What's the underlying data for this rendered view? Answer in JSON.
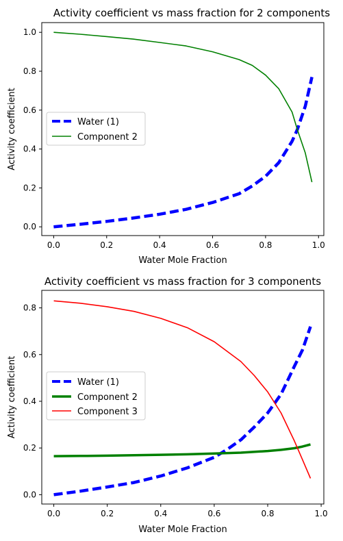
{
  "chart_data": [
    {
      "type": "line",
      "title": "Activity coefficient vs mass fraction for 2 components",
      "xlabel": "Water Mole Fraction",
      "ylabel": "Activity coefficient",
      "xlim": [
        -0.045,
        1.02
      ],
      "ylim": [
        -0.045,
        1.05
      ],
      "xticks": [
        "0.0",
        "0.2",
        "0.4",
        "0.6",
        "0.8",
        "1.0"
      ],
      "yticks": [
        "0.0",
        "0.2",
        "0.4",
        "0.6",
        "0.8",
        "1.0"
      ],
      "legend_position": "center-left",
      "grid": false,
      "series": [
        {
          "name": "Water (1)",
          "color": "#0000ff",
          "style": "dashed-thick",
          "x": [
            0.0,
            0.1,
            0.2,
            0.3,
            0.4,
            0.5,
            0.6,
            0.7,
            0.75,
            0.8,
            0.85,
            0.9,
            0.92,
            0.95,
            0.975
          ],
          "y": [
            0.0,
            0.013,
            0.028,
            0.045,
            0.065,
            0.09,
            0.125,
            0.17,
            0.21,
            0.26,
            0.33,
            0.44,
            0.5,
            0.62,
            0.77
          ]
        },
        {
          "name": "Component 2",
          "color": "#008000",
          "style": "solid-thin",
          "x": [
            0.0,
            0.1,
            0.2,
            0.3,
            0.4,
            0.5,
            0.6,
            0.7,
            0.75,
            0.8,
            0.85,
            0.9,
            0.92,
            0.95,
            0.975
          ],
          "y": [
            1.0,
            0.99,
            0.978,
            0.965,
            0.948,
            0.93,
            0.9,
            0.86,
            0.83,
            0.78,
            0.71,
            0.59,
            0.5,
            0.38,
            0.23
          ]
        }
      ]
    },
    {
      "type": "line",
      "title": "Activity coefficient vs mass fraction for 3 components",
      "xlabel": "Water Mole Fraction",
      "ylabel": "Activity coefficient",
      "xlim": [
        -0.045,
        1.01
      ],
      "ylim": [
        -0.04,
        0.875
      ],
      "xticks": [
        "0.0",
        "0.2",
        "0.4",
        "0.6",
        "0.8",
        "1.0"
      ],
      "yticks": [
        "0.0",
        "0.2",
        "0.4",
        "0.6",
        "0.8"
      ],
      "legend_position": "center-left",
      "grid": false,
      "series": [
        {
          "name": "Water (1)",
          "color": "#0000ff",
          "style": "dashed-thick",
          "x": [
            0.0,
            0.1,
            0.2,
            0.3,
            0.4,
            0.5,
            0.6,
            0.65,
            0.7,
            0.75,
            0.8,
            0.85,
            0.9,
            0.93,
            0.96
          ],
          "y": [
            0.0,
            0.015,
            0.033,
            0.052,
            0.08,
            0.115,
            0.16,
            0.195,
            0.235,
            0.29,
            0.35,
            0.43,
            0.55,
            0.62,
            0.72
          ]
        },
        {
          "name": "Component 2",
          "color": "#008000",
          "style": "solid-thick",
          "x": [
            0.0,
            0.1,
            0.2,
            0.3,
            0.4,
            0.5,
            0.6,
            0.7,
            0.8,
            0.85,
            0.9,
            0.93,
            0.96
          ],
          "y": [
            0.165,
            0.166,
            0.167,
            0.169,
            0.171,
            0.173,
            0.176,
            0.18,
            0.187,
            0.192,
            0.199,
            0.206,
            0.215
          ]
        },
        {
          "name": "Component 3",
          "color": "#ff0000",
          "style": "solid-thin",
          "x": [
            0.0,
            0.1,
            0.2,
            0.3,
            0.4,
            0.5,
            0.6,
            0.7,
            0.75,
            0.8,
            0.85,
            0.9,
            0.93,
            0.96
          ],
          "y": [
            0.83,
            0.82,
            0.805,
            0.785,
            0.755,
            0.715,
            0.655,
            0.57,
            0.51,
            0.44,
            0.35,
            0.23,
            0.15,
            0.07
          ]
        }
      ]
    }
  ]
}
